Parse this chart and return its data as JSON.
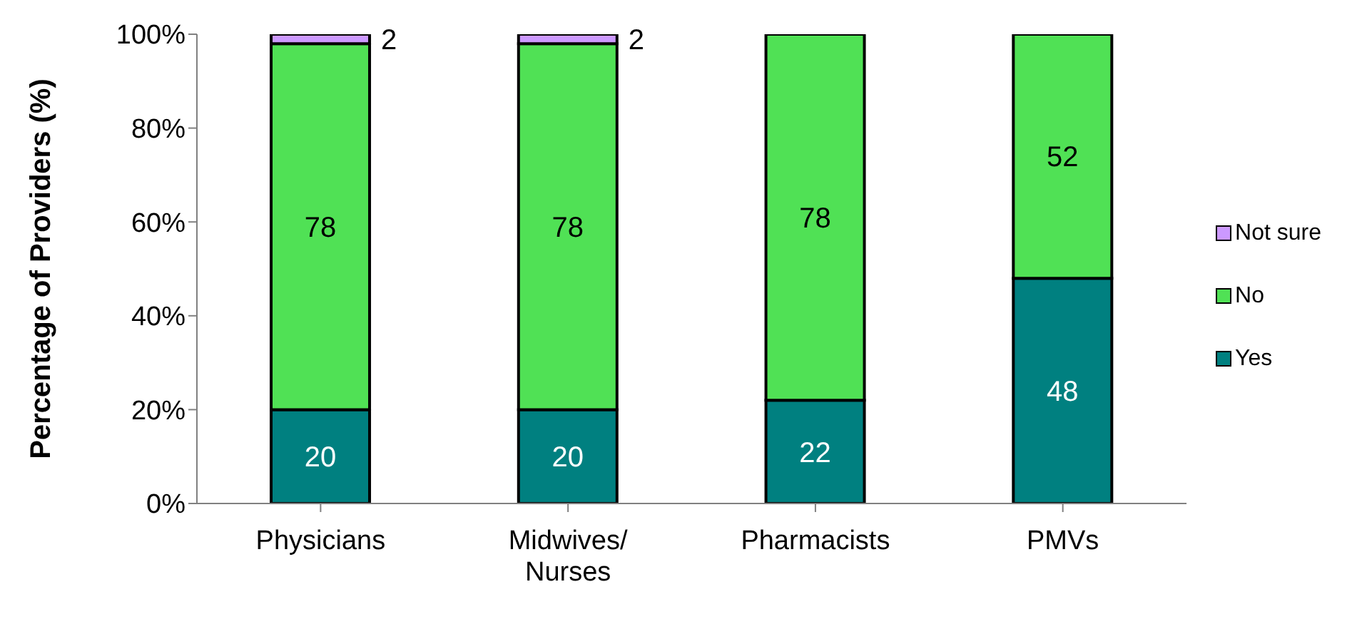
{
  "chart_data": {
    "type": "bar",
    "stacked": true,
    "ylabel": "Percentage of Providers (%)",
    "categories": [
      "Physicians",
      "Midwives/ Nurses",
      "Pharmacists",
      "PMVs"
    ],
    "series": [
      {
        "name": "Yes",
        "color": "#008080",
        "values": [
          20,
          20,
          22,
          48
        ],
        "value_labels": [
          "20",
          "20",
          "22",
          "48"
        ]
      },
      {
        "name": "No",
        "color": "#50e155",
        "values": [
          78,
          78,
          78,
          52
        ],
        "value_labels": [
          "78",
          "78",
          "78",
          "52"
        ]
      },
      {
        "name": "Not sure",
        "color": "#cc99ff",
        "values": [
          2,
          2,
          null,
          null
        ],
        "value_labels": [
          "2",
          "2",
          null,
          null
        ]
      }
    ],
    "ylim": [
      0,
      100
    ],
    "yticks": [
      {
        "value": 0,
        "label": "0%"
      },
      {
        "value": 20,
        "label": "20%"
      },
      {
        "value": 40,
        "label": "40%"
      },
      {
        "value": 60,
        "label": "60%"
      },
      {
        "value": 80,
        "label": "80%"
      },
      {
        "value": 100,
        "label": "100%"
      }
    ],
    "grid": false,
    "legend": "right"
  }
}
